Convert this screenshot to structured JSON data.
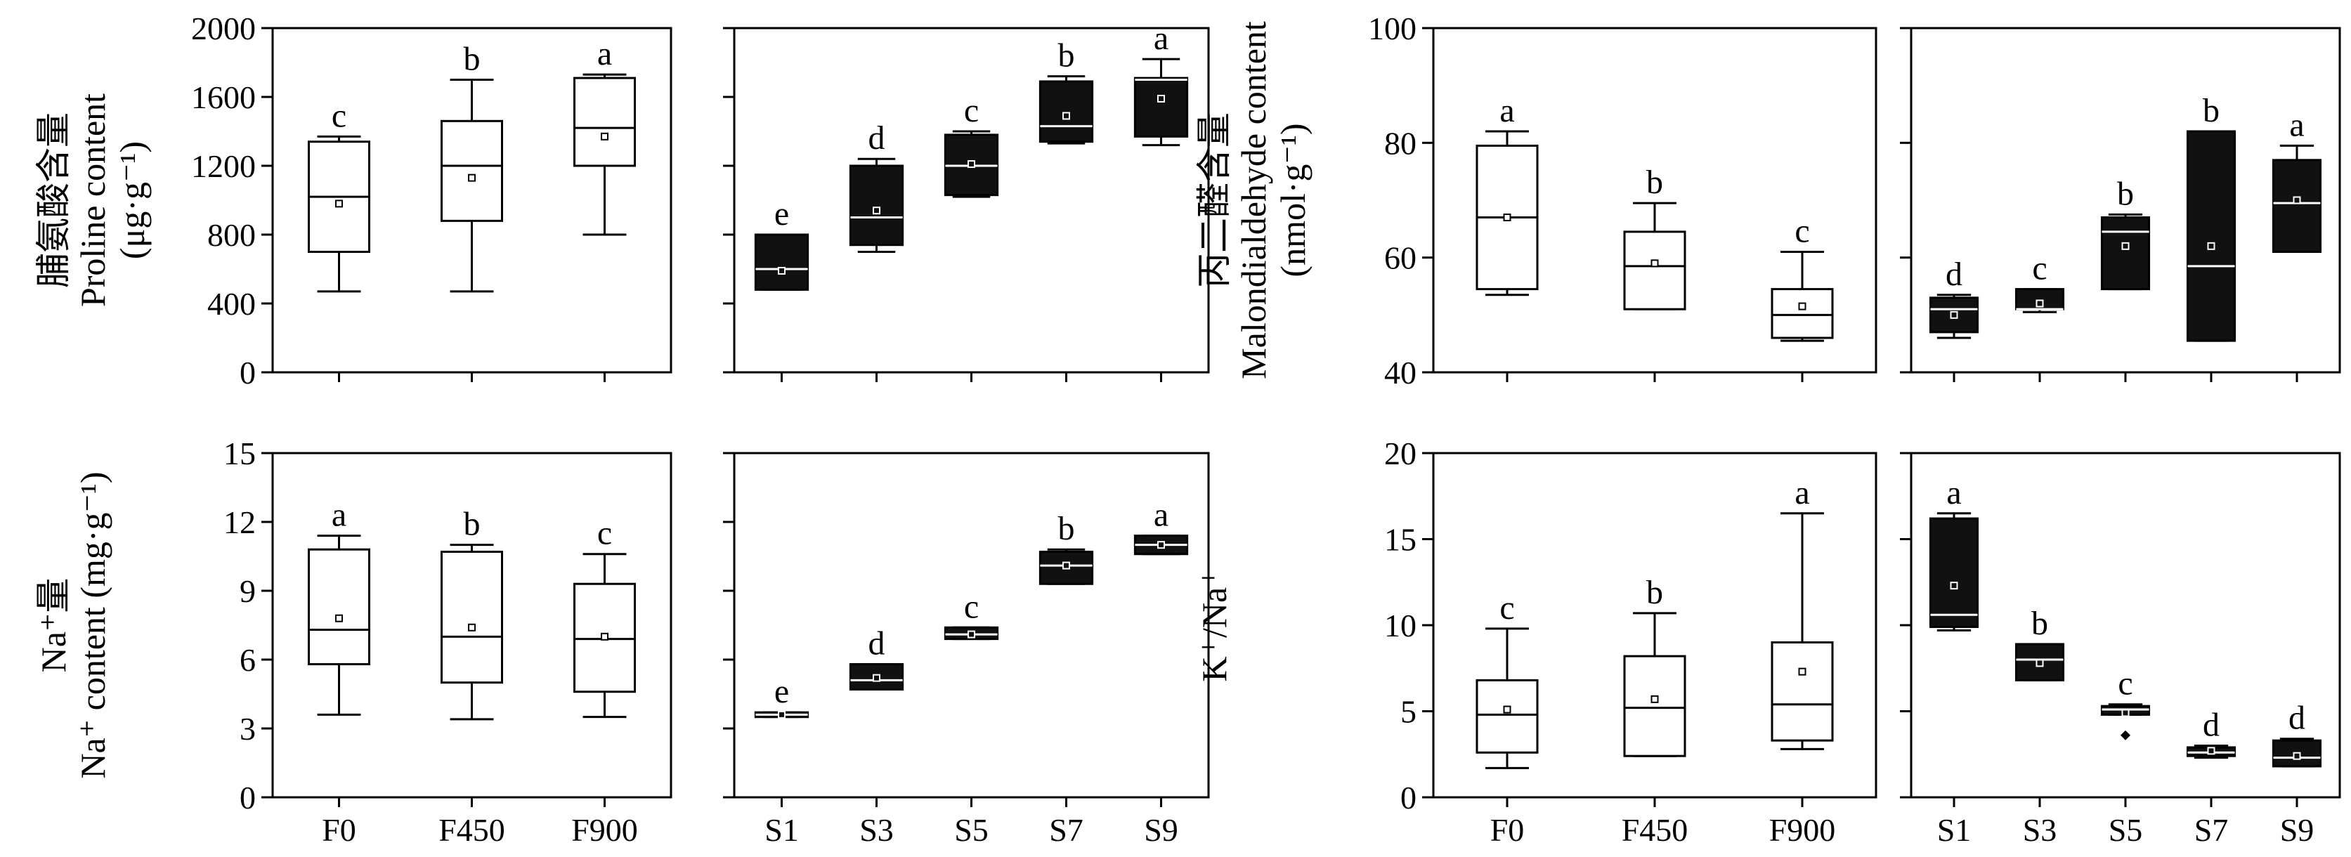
{
  "chart_data": [
    {
      "id": "proline",
      "type": "boxplot",
      "ylabel_lines": [
        "脯氨酸含量",
        "Proline content",
        "(μg·g⁻¹)"
      ],
      "ylim": [
        0,
        2000
      ],
      "yticks": [
        0,
        400,
        800,
        1200,
        1600,
        2000
      ],
      "left": {
        "categories": [
          "F0",
          "F450",
          "F900"
        ],
        "boxes": [
          {
            "whislo": 470,
            "q1": 700,
            "med": 1020,
            "q3": 1340,
            "whishi": 1370,
            "mean": 980,
            "letter": "c"
          },
          {
            "whislo": 470,
            "q1": 880,
            "med": 1200,
            "q3": 1460,
            "whishi": 1700,
            "mean": 1130,
            "letter": "b"
          },
          {
            "whislo": 800,
            "q1": 1200,
            "med": 1420,
            "q3": 1710,
            "whishi": 1730,
            "mean": 1370,
            "letter": "a"
          }
        ]
      },
      "right": {
        "categories": [
          "S1",
          "S3",
          "S5",
          "S7",
          "S9"
        ],
        "boxes": [
          {
            "whislo": 480,
            "q1": 480,
            "med": 600,
            "q3": 800,
            "whishi": 800,
            "mean": 590,
            "letter": "e"
          },
          {
            "whislo": 700,
            "q1": 740,
            "med": 900,
            "q3": 1200,
            "whishi": 1240,
            "mean": 940,
            "letter": "d"
          },
          {
            "whislo": 1020,
            "q1": 1030,
            "med": 1200,
            "q3": 1380,
            "whishi": 1400,
            "mean": 1210,
            "letter": "c"
          },
          {
            "whislo": 1330,
            "q1": 1340,
            "med": 1430,
            "q3": 1690,
            "whishi": 1720,
            "mean": 1490,
            "letter": "b"
          },
          {
            "whislo": 1320,
            "q1": 1370,
            "med": 1700,
            "q3": 1710,
            "whishi": 1820,
            "mean": 1590,
            "letter": "a"
          }
        ]
      }
    },
    {
      "id": "malondialdehyde",
      "type": "boxplot",
      "ylabel_lines": [
        "丙二醛含量",
        "Malondialdehyde content",
        "(nmol·g⁻¹)"
      ],
      "ylim": [
        40,
        100
      ],
      "yticks": [
        40,
        60,
        80,
        100
      ],
      "left": {
        "categories": [
          "F0",
          "F450",
          "F900"
        ],
        "boxes": [
          {
            "whislo": 53.5,
            "q1": 54.5,
            "med": 67.0,
            "q3": 79.5,
            "whishi": 82.0,
            "mean": 67.0,
            "letter": "a"
          },
          {
            "whislo": 51.0,
            "q1": 51.0,
            "med": 58.5,
            "q3": 64.5,
            "whishi": 69.5,
            "mean": 59.0,
            "letter": "b"
          },
          {
            "whislo": 45.5,
            "q1": 46.0,
            "med": 50.0,
            "q3": 54.5,
            "whishi": 61.0,
            "mean": 51.5,
            "letter": "c"
          }
        ]
      },
      "right": {
        "categories": [
          "S1",
          "S3",
          "S5",
          "S7",
          "S9"
        ],
        "boxes": [
          {
            "whislo": 46.0,
            "q1": 47.0,
            "med": 51.0,
            "q3": 53.0,
            "whishi": 53.5,
            "mean": 50.0,
            "letter": "d"
          },
          {
            "whislo": 50.5,
            "q1": 51.0,
            "med": 51.0,
            "q3": 54.5,
            "whishi": 54.5,
            "mean": 52.0,
            "letter": "c"
          },
          {
            "whislo": 54.5,
            "q1": 54.5,
            "med": 64.5,
            "q3": 67.0,
            "whishi": 67.5,
            "mean": 62.0,
            "letter": "b"
          },
          {
            "whislo": 45.5,
            "q1": 45.5,
            "med": 58.5,
            "q3": 82.0,
            "whishi": 82.0,
            "mean": 62.0,
            "letter": "b"
          },
          {
            "whislo": 61.0,
            "q1": 61.0,
            "med": 69.5,
            "q3": 77.0,
            "whishi": 79.5,
            "mean": 70.0,
            "letter": "a"
          }
        ]
      }
    },
    {
      "id": "na-content",
      "type": "boxplot",
      "ylabel_lines": [
        "Na⁺量",
        "Na⁺ content (mg·g⁻¹)"
      ],
      "ylim": [
        0,
        15
      ],
      "yticks": [
        0,
        3,
        6,
        9,
        12,
        15
      ],
      "left": {
        "categories": [
          "F0",
          "F450",
          "F900"
        ],
        "boxes": [
          {
            "whislo": 3.6,
            "q1": 5.8,
            "med": 7.3,
            "q3": 10.8,
            "whishi": 11.4,
            "mean": 7.8,
            "letter": "a"
          },
          {
            "whislo": 3.4,
            "q1": 5.0,
            "med": 7.0,
            "q3": 10.7,
            "whishi": 11.0,
            "mean": 7.4,
            "letter": "b"
          },
          {
            "whislo": 3.5,
            "q1": 4.6,
            "med": 6.9,
            "q3": 9.3,
            "whishi": 10.6,
            "mean": 7.0,
            "letter": "c"
          }
        ]
      },
      "right": {
        "categories": [
          "S1",
          "S3",
          "S5",
          "S7",
          "S9"
        ],
        "boxes": [
          {
            "whislo": 3.5,
            "q1": 3.5,
            "med": 3.6,
            "q3": 3.7,
            "whishi": 3.7,
            "mean": 3.6,
            "letter": "e"
          },
          {
            "whislo": 4.7,
            "q1": 4.7,
            "med": 5.1,
            "q3": 5.8,
            "whishi": 5.8,
            "mean": 5.2,
            "letter": "d"
          },
          {
            "whislo": 6.9,
            "q1": 6.9,
            "med": 7.1,
            "q3": 7.4,
            "whishi": 7.4,
            "mean": 7.1,
            "letter": "c"
          },
          {
            "whislo": 9.3,
            "q1": 9.3,
            "med": 10.1,
            "q3": 10.7,
            "whishi": 10.8,
            "mean": 10.1,
            "letter": "b"
          },
          {
            "whislo": 10.6,
            "q1": 10.6,
            "med": 11.0,
            "q3": 11.4,
            "whishi": 11.4,
            "mean": 11.0,
            "letter": "a"
          }
        ]
      }
    },
    {
      "id": "k-na-ratio",
      "type": "boxplot",
      "ylabel_lines": [
        "K⁺/Na⁺"
      ],
      "ylim": [
        0,
        20
      ],
      "yticks": [
        0,
        5,
        10,
        15,
        20
      ],
      "left": {
        "categories": [
          "F0",
          "F450",
          "F900"
        ],
        "boxes": [
          {
            "whislo": 1.7,
            "q1": 2.6,
            "med": 4.8,
            "q3": 6.8,
            "whishi": 9.8,
            "mean": 5.1,
            "letter": "c"
          },
          {
            "whislo": 2.4,
            "q1": 2.4,
            "med": 5.2,
            "q3": 8.2,
            "whishi": 10.7,
            "mean": 5.7,
            "letter": "b"
          },
          {
            "whislo": 2.8,
            "q1": 3.3,
            "med": 5.4,
            "q3": 9.0,
            "whishi": 16.5,
            "mean": 7.3,
            "letter": "a"
          }
        ]
      },
      "right": {
        "categories": [
          "S1",
          "S3",
          "S5",
          "S7",
          "S9"
        ],
        "boxes": [
          {
            "whislo": 9.7,
            "q1": 9.9,
            "med": 10.6,
            "q3": 16.2,
            "whishi": 16.5,
            "mean": 12.3,
            "letter": "a"
          },
          {
            "whislo": 6.8,
            "q1": 6.8,
            "med": 8.0,
            "q3": 8.9,
            "whishi": 8.9,
            "mean": 7.8,
            "letter": "b"
          },
          {
            "whislo": 4.8,
            "q1": 4.8,
            "med": 5.1,
            "q3": 5.3,
            "whishi": 5.4,
            "mean": 4.9,
            "outliers": [
              3.6
            ],
            "letter": "c"
          },
          {
            "whislo": 2.3,
            "q1": 2.4,
            "med": 2.6,
            "q3": 2.9,
            "whishi": 3.0,
            "mean": 2.7,
            "letter": "d"
          },
          {
            "whislo": 1.8,
            "q1": 1.8,
            "med": 2.3,
            "q3": 3.3,
            "whishi": 3.4,
            "mean": 2.4,
            "letter": "d"
          }
        ]
      }
    }
  ]
}
